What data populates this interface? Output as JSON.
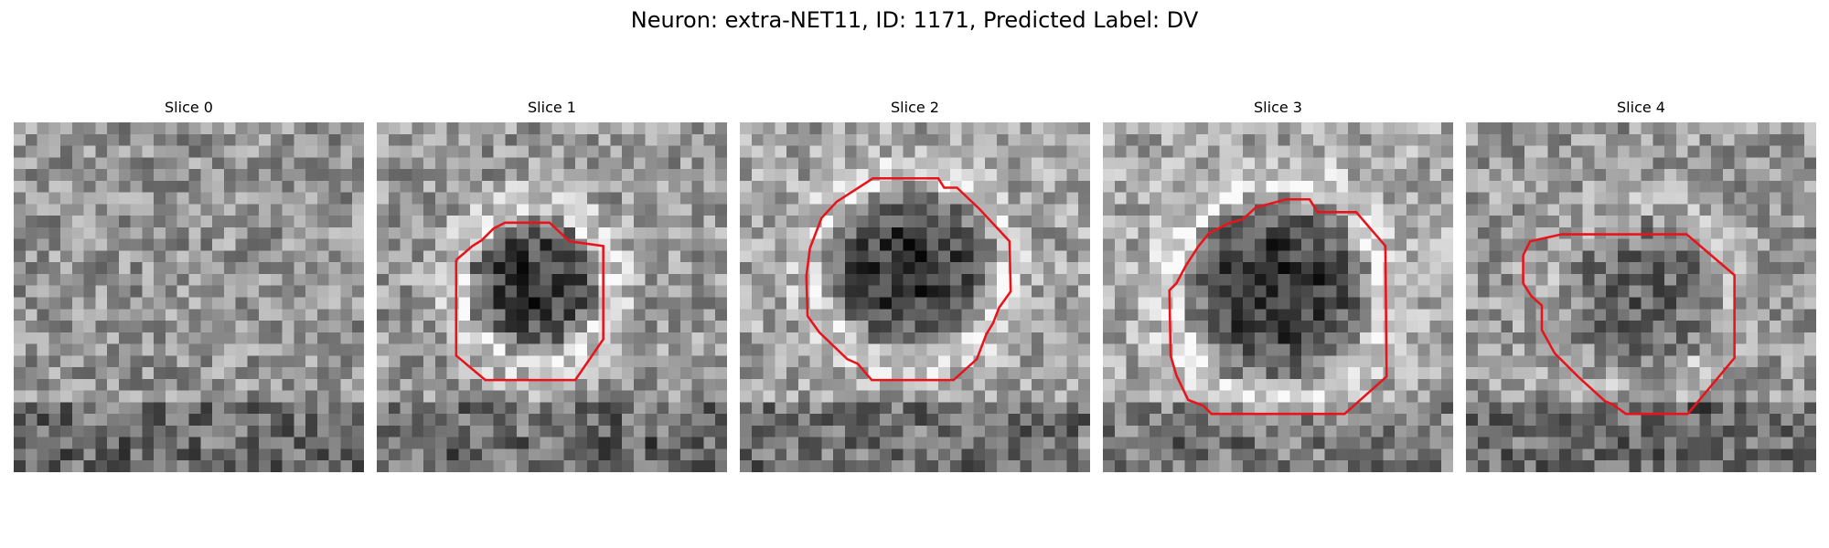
{
  "figure": {
    "title": "Neuron: extra-NET11, ID: 1171, Predicted Label: DV"
  },
  "slices": [
    {
      "label": "Slice 0"
    },
    {
      "label": "Slice 1"
    },
    {
      "label": "Slice 2"
    },
    {
      "label": "Slice 3"
    },
    {
      "label": "Slice 4"
    }
  ],
  "colors": {
    "contour": "#e8141b",
    "background": "#ffffff"
  }
}
